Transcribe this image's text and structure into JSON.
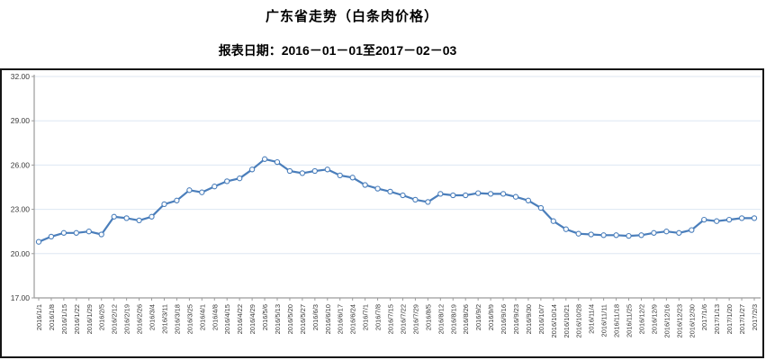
{
  "chart_data": {
    "type": "line",
    "title": "广东省走势（白条肉价格）",
    "subtitle": "报表日期：2016－01－01至2017－02－03",
    "categories": [
      "2016/1/1",
      "2016/1/8",
      "2016/1/15",
      "2016/1/22",
      "2016/1/29",
      "2016/2/5",
      "2016/2/12",
      "2016/2/19",
      "2016/2/26",
      "2016/3/4",
      "2016/3/11",
      "2016/3/18",
      "2016/3/25",
      "2016/4/1",
      "2016/4/8",
      "2016/4/15",
      "2016/4/22",
      "2016/4/29",
      "2016/5/6",
      "2016/5/13",
      "2016/5/20",
      "2016/5/27",
      "2016/6/3",
      "2016/6/10",
      "2016/6/17",
      "2016/6/24",
      "2016/7/1",
      "2016/7/8",
      "2016/7/15",
      "2016/7/22",
      "2016/7/29",
      "2016/8/5",
      "2016/8/12",
      "2016/8/19",
      "2016/8/26",
      "2016/9/2",
      "2016/9/9",
      "2016/9/16",
      "2016/9/23",
      "2016/9/30",
      "2016/10/7",
      "2016/10/14",
      "2016/10/21",
      "2016/10/28",
      "2016/11/4",
      "2016/11/11",
      "2016/11/18",
      "2016/11/25",
      "2016/12/2",
      "2016/12/9",
      "2016/12/16",
      "2016/12/23",
      "2016/12/30",
      "2017/1/6",
      "2017/1/13",
      "2017/1/20",
      "2017/1/27",
      "2017/2/3"
    ],
    "values": [
      20.8,
      21.15,
      21.4,
      21.4,
      21.5,
      21.3,
      22.5,
      22.4,
      22.25,
      22.5,
      23.35,
      23.6,
      24.3,
      24.15,
      24.55,
      24.9,
      25.1,
      25.7,
      26.4,
      26.2,
      25.6,
      25.45,
      25.6,
      25.7,
      25.3,
      25.15,
      24.65,
      24.4,
      24.2,
      23.95,
      23.65,
      23.5,
      24.05,
      23.95,
      23.95,
      24.1,
      24.05,
      24.05,
      23.85,
      23.6,
      23.1,
      22.2,
      21.65,
      21.35,
      21.3,
      21.25,
      21.25,
      21.2,
      21.25,
      21.4,
      21.5,
      21.4,
      21.6,
      22.3,
      22.2,
      22.3,
      22.4,
      22.4
    ],
    "xlabel": "",
    "ylabel": "",
    "ylim": [
      17,
      32
    ],
    "y_ticks": [
      {
        "value": 17,
        "label": "17.00"
      },
      {
        "value": 20,
        "label": "20.00"
      },
      {
        "value": 23,
        "label": "23.00"
      },
      {
        "value": 26,
        "label": "26.00"
      },
      {
        "value": 29,
        "label": "29.00"
      },
      {
        "value": 32,
        "label": "32.00"
      }
    ],
    "grid": true,
    "legend_position": "none",
    "line_color": "#4a7ebb",
    "marker_style": "open-circle",
    "marker_fill": "#ffffff",
    "gridline_color": "#dde7f2",
    "axis_color": "#9b9b9b",
    "tick_label_color": "#3a3a3a"
  }
}
